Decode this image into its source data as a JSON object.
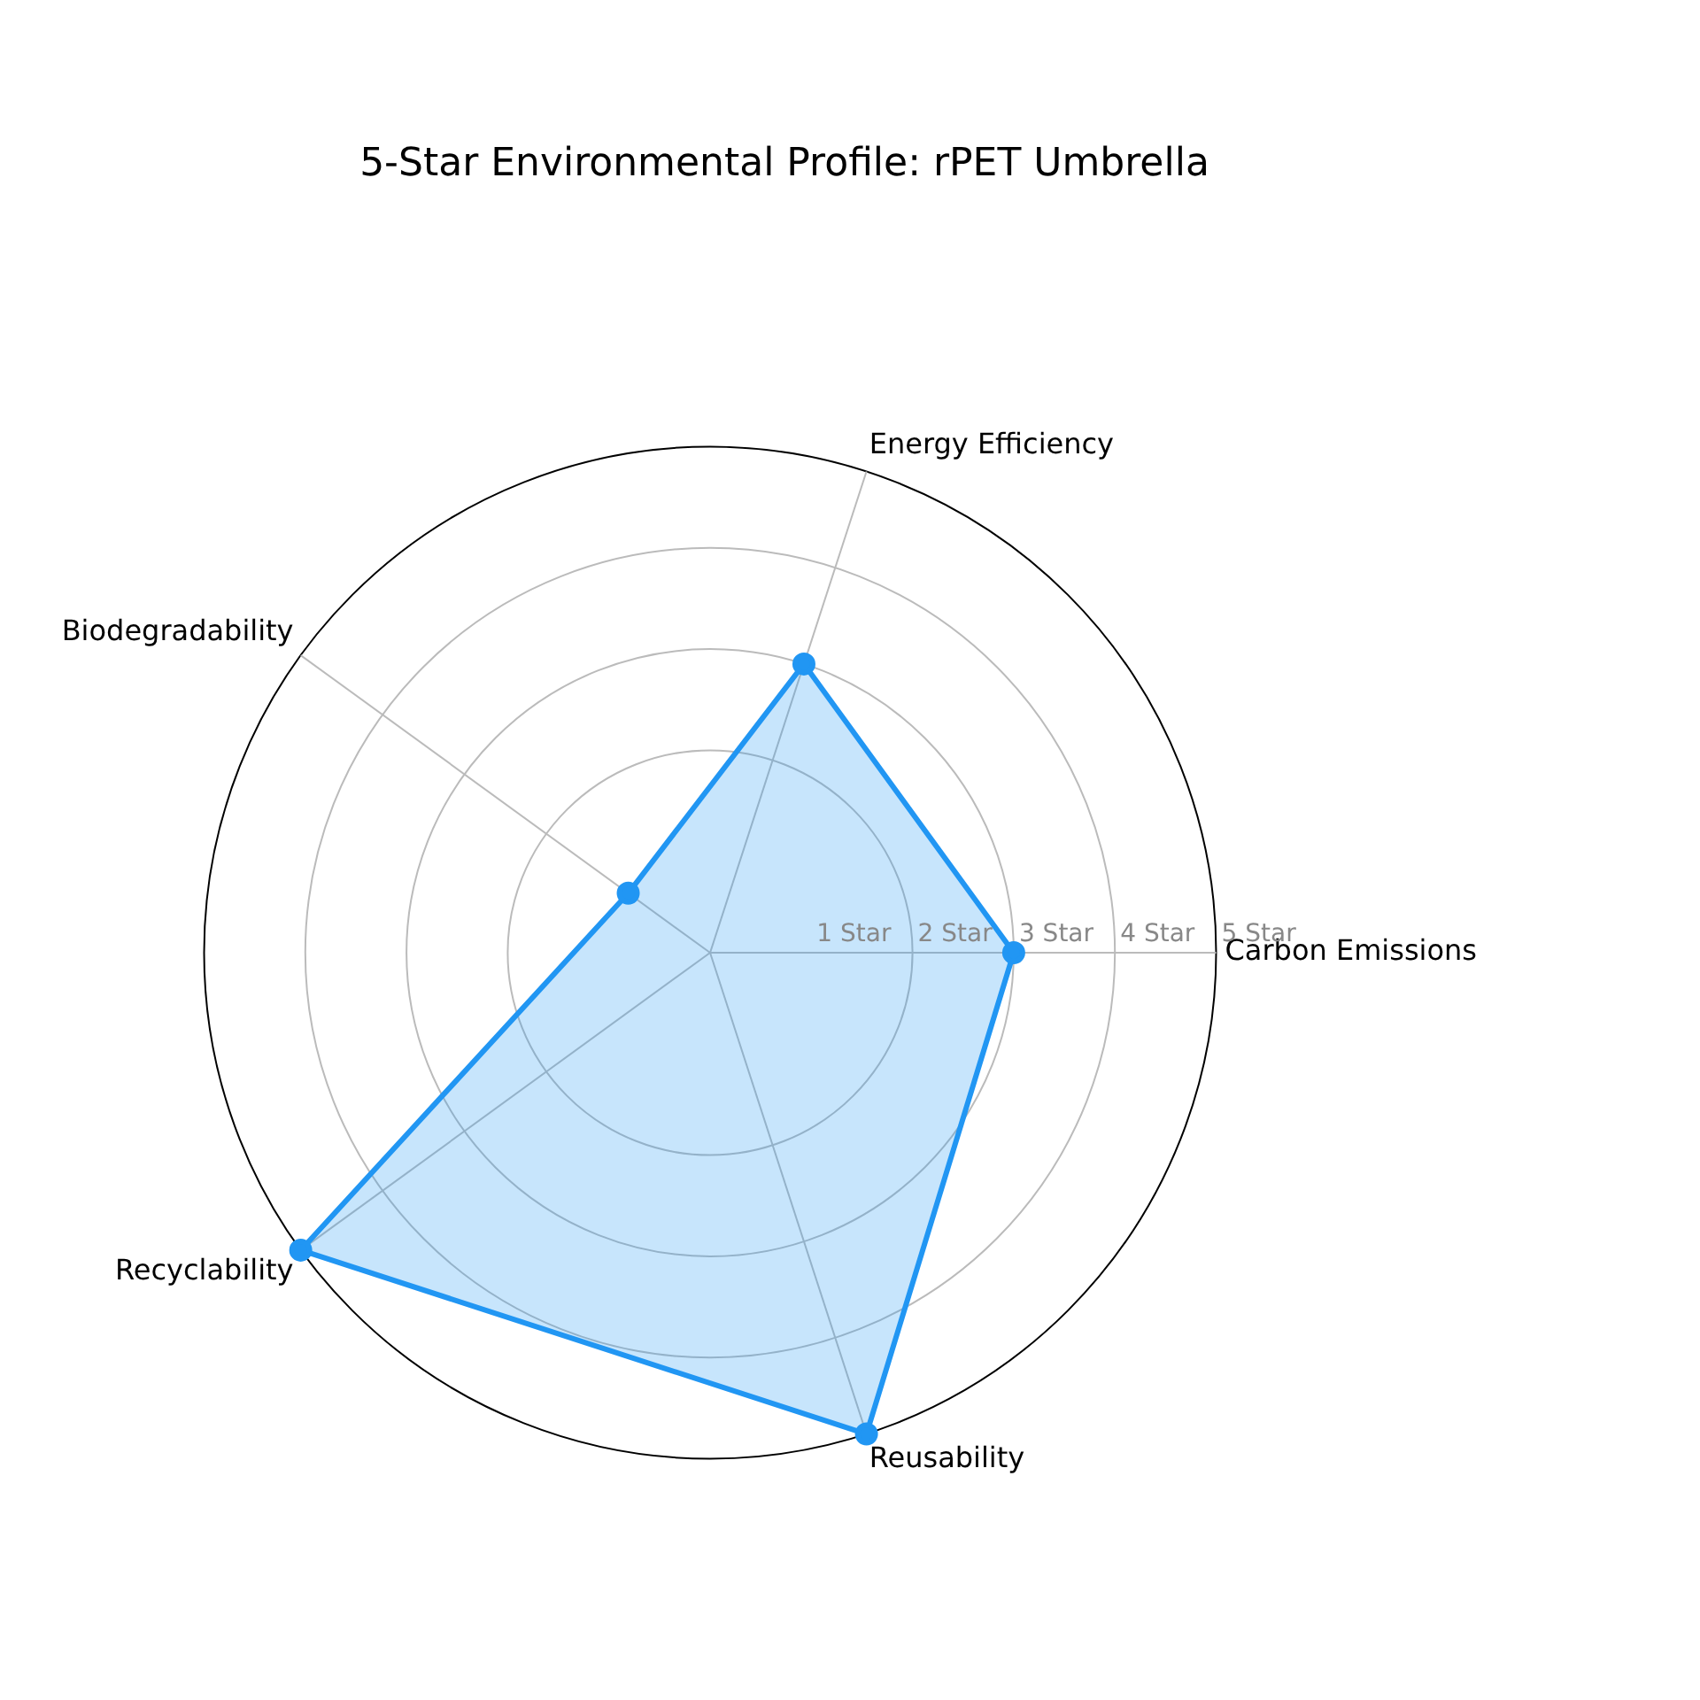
{
  "chart_data": {
    "type": "radar",
    "title": "5-Star Environmental Profile: rPET Umbrella",
    "categories": [
      "Energy Efficiency",
      "Carbon Emissions",
      "Reusability",
      "Recyclability",
      "Biodegradability"
    ],
    "series": [
      {
        "color": "#2196f3",
        "values": [
          3,
          3,
          5,
          5,
          1
        ]
      }
    ],
    "ylim": [
      0,
      5
    ],
    "yticks": [
      {
        "value": 1,
        "label": "1 Star"
      },
      {
        "value": 2,
        "label": "2 Star"
      },
      {
        "value": 3,
        "label": "3 Star"
      },
      {
        "value": 4,
        "label": "4 Star"
      },
      {
        "value": 5,
        "label": "5 Star"
      }
    ],
    "grid": true,
    "legend": false,
    "marker": "circle"
  }
}
